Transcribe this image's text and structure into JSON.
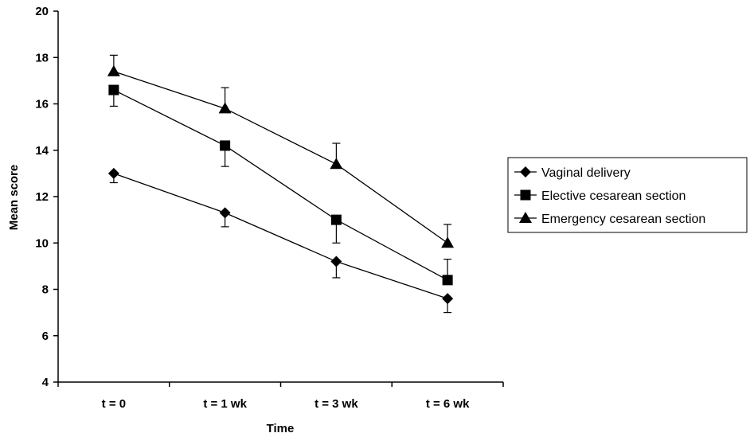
{
  "chart_data": {
    "type": "line",
    "title": "",
    "xlabel": "Time",
    "ylabel": "Mean score",
    "categories": [
      "t = 0",
      "t = 1 wk",
      "t = 3 wk",
      "t = 6 wk"
    ],
    "ylim": [
      4,
      20
    ],
    "yticks": [
      4,
      6,
      8,
      10,
      12,
      14,
      16,
      18,
      20
    ],
    "grid": false,
    "legend_position": "right",
    "series": [
      {
        "name": "Vaginal delivery",
        "marker": "diamond",
        "values": [
          13.0,
          11.3,
          9.2,
          7.6
        ],
        "error_bar_top": [
          12.6,
          10.7,
          8.5,
          7.0
        ],
        "error_direction": "down"
      },
      {
        "name": "Elective cesarean section",
        "marker": "square",
        "values": [
          16.6,
          14.2,
          11.0,
          8.4
        ],
        "error_bar_top": [
          15.9,
          13.3,
          10.0,
          9.3
        ],
        "error_direction": [
          "down",
          "down",
          "down",
          "up"
        ]
      },
      {
        "name": "Emergency cesarean section",
        "marker": "triangle",
        "values": [
          17.4,
          15.8,
          13.4,
          10.0
        ],
        "error_bar_top": [
          18.1,
          16.7,
          14.3,
          10.8
        ],
        "error_direction": "up"
      }
    ]
  }
}
